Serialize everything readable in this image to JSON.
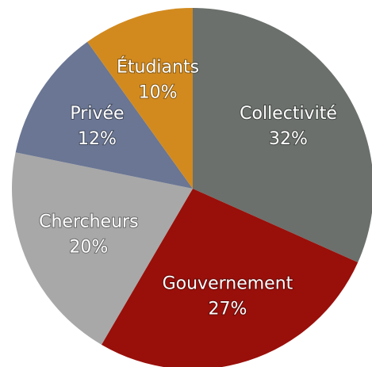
{
  "chart_data": {
    "type": "pie",
    "categories": [
      "Collectivité",
      "Gouvernement",
      "Chercheurs",
      "Privée",
      "Étudiants"
    ],
    "values": [
      32,
      27,
      20,
      12,
      10
    ],
    "value_labels": [
      "32%",
      "27%",
      "20%",
      "12%",
      "10%"
    ],
    "colors": [
      "#6b706c",
      "#990f0a",
      "#a8a8a8",
      "#6a7693",
      "#d28a1f"
    ]
  }
}
